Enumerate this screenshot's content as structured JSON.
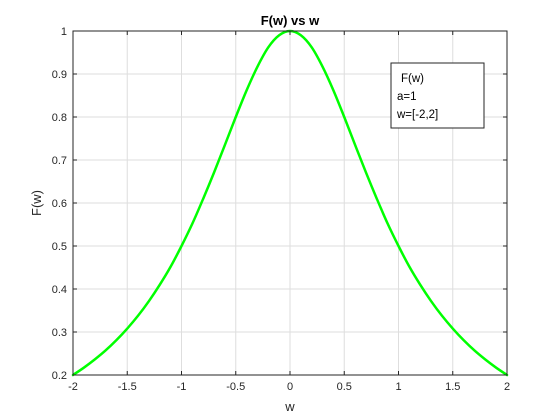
{
  "chart_data": {
    "type": "line",
    "title": "F(w) vs w",
    "xlabel": "w",
    "ylabel": "F(w)",
    "xlim": [
      -2,
      2
    ],
    "ylim": [
      0.2,
      1
    ],
    "xticks": [
      -2,
      -1.5,
      -1,
      -0.5,
      0,
      0.5,
      1,
      1.5,
      2
    ],
    "xtick_labels": [
      "-2",
      "-1.5",
      "-1",
      "-0.5",
      "0",
      "0.5",
      "1",
      "1.5",
      "2"
    ],
    "yticks": [
      0.2,
      0.3,
      0.4,
      0.5,
      0.6,
      0.7,
      0.8,
      0.9,
      1
    ],
    "ytick_labels": [
      "0.2",
      "0.3",
      "0.4",
      "0.5",
      "0.6",
      "0.7",
      "0.8",
      "0.9",
      "1"
    ],
    "grid": true,
    "legend_position": "top-right",
    "legend_lines": [
      "F(w)",
      "a=1",
      "w=[-2,2]"
    ],
    "series": [
      {
        "color": "#00ff00",
        "x": [
          -2,
          -1.9,
          -1.8,
          -1.7,
          -1.6,
          -1.5,
          -1.4,
          -1.3,
          -1.2,
          -1.1,
          -1,
          -0.9,
          -0.8,
          -0.7,
          -0.6,
          -0.5,
          -0.4,
          -0.3,
          -0.2,
          -0.1,
          0,
          0.1,
          0.2,
          0.3,
          0.4,
          0.5,
          0.6,
          0.7,
          0.8,
          0.9,
          1,
          1.1,
          1.2,
          1.3,
          1.4,
          1.5,
          1.6,
          1.7,
          1.8,
          1.9,
          2
        ],
        "y": [
          0.2,
          0.217,
          0.236,
          0.257,
          0.281,
          0.308,
          0.338,
          0.372,
          0.41,
          0.452,
          0.5,
          0.552,
          0.61,
          0.671,
          0.735,
          0.8,
          0.862,
          0.917,
          0.962,
          0.99,
          1,
          0.99,
          0.962,
          0.917,
          0.862,
          0.8,
          0.735,
          0.671,
          0.61,
          0.552,
          0.5,
          0.452,
          0.41,
          0.372,
          0.338,
          0.308,
          0.281,
          0.257,
          0.236,
          0.217,
          0.2
        ]
      }
    ]
  }
}
